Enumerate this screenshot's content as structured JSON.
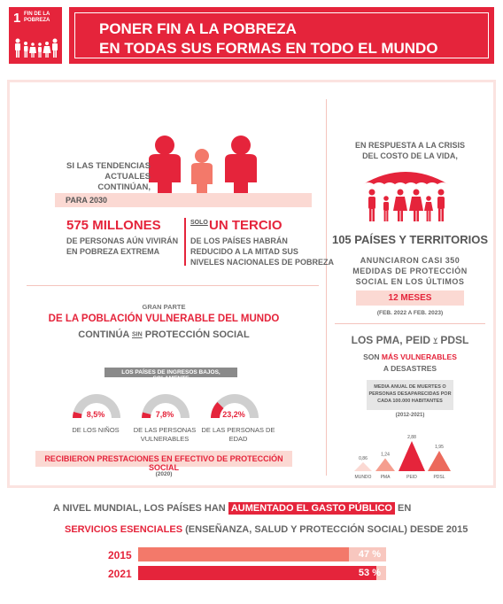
{
  "header": {
    "goal_number": "1",
    "goal_label": "FIN DE LA POBREZA",
    "title_line1": "PONER FIN A LA POBREZA",
    "title_line2": "EN TODAS SUS FORMAS EN TODO EL MUNDO",
    "accent_color": "#e5243b"
  },
  "poverty": {
    "intro_line1": "SI LAS TENDENCIAS",
    "intro_line2": "ACTUALES CONTINÚAN,",
    "year": "PARA 2030",
    "millions_headline": "575 MILLONES",
    "millions_line1": "DE PERSONAS AÚN VIVIRÁN",
    "millions_line2": "EN POBREZA EXTREMA",
    "solo": "SOLO",
    "third_headline": "UN TERCIO",
    "third_line1": "DE LOS PAÍSES HABRÁN",
    "third_line2": "REDUCIDO A LA MITAD SUS",
    "third_line3": "NIVELES NACIONALES DE POBREZA"
  },
  "crisis": {
    "line1": "EN RESPUESTA A LA CRISIS",
    "line2": "DEL COSTO DE LA VIDA,",
    "countries_headline": "105 PAÍSES Y TERRITORIOS",
    "measures_line1": "ANUNCIARON CASI 350",
    "measures_line2": "MEDIDAS DE PROTECCIÓN",
    "measures_line3": "SOCIAL EN LOS ÚLTIMOS",
    "months": "12 MESES",
    "period": "(FEB. 2022 A FEB. 2023)"
  },
  "protection": {
    "gran_parte": "GRAN PARTE",
    "headline_red": "DE LA POBLACIÓN VULNERABLE DEL MUNDO",
    "continua": "CONTINÚA",
    "sin": "SIN",
    "proteccion": "PROTECCIÓN SOCIAL",
    "low_income_label": "LOS PAÍSES DE INGRESOS BAJOS, SOLAMENTE",
    "gauges": [
      {
        "value": "8,5%",
        "fraction": 0.085,
        "label_line1": "DE LOS NIÑOS",
        "label_line2": ""
      },
      {
        "value": "7,8%",
        "fraction": 0.078,
        "label_line1": "DE LAS PERSONAS",
        "label_line2": "VULNERABLES"
      },
      {
        "value": "23,2%",
        "fraction": 0.232,
        "label_line1": "DE LAS PERSONAS DE EDAD",
        "label_line2": ""
      }
    ],
    "benefits_label": "RECIBIERON PRESTACIONES EN EFECTIVO DE PROTECCIÓN SOCIAL",
    "benefits_year": "(2020)"
  },
  "vulnerable": {
    "headline": "LOS PMA, PEID",
    "y": "Y",
    "pdsl": "PDSL",
    "son": "SON",
    "mas_vulnerables": "MÁS VULNERABLES",
    "a_desastres": "A DESASTRES",
    "metric_line1": "MEDIA ANUAL DE MUERTES O",
    "metric_line2": "PERSONAS DESAPARECIDAS POR",
    "metric_line3": "CADA 100.000 HABITANTES",
    "metric_period": "(2012-2021)"
  },
  "chart_data": {
    "type": "bar",
    "categories": [
      "MUNDO",
      "PMA",
      "PEID",
      "PDSL"
    ],
    "values": [
      0.86,
      1.24,
      2.88,
      1.95
    ],
    "value_labels": [
      "0,86",
      "1,24",
      "2,88",
      "1,95"
    ],
    "colors": [
      "#fbd9d3",
      "#f59e8f",
      "#e5243b",
      "#ec6a5c"
    ]
  },
  "spending": {
    "line1_pre": "A NIVEL MUNDIAL, LOS PAÍSES HAN",
    "line1_highlight": "AUMENTADO EL GASTO PÚBLICO",
    "line1_post": "EN",
    "line2_red": "SERVICIOS ESENCIALES",
    "line2_rest": "(ENSEÑANZA, SALUD Y PROTECCIÓN SOCIAL) DESDE  2015",
    "bars": [
      {
        "year": "2015",
        "value": 47,
        "label": "47 %",
        "color": "#f3796a"
      },
      {
        "year": "2021",
        "value": 53,
        "label": "53 %",
        "color": "#e5243b"
      }
    ]
  }
}
